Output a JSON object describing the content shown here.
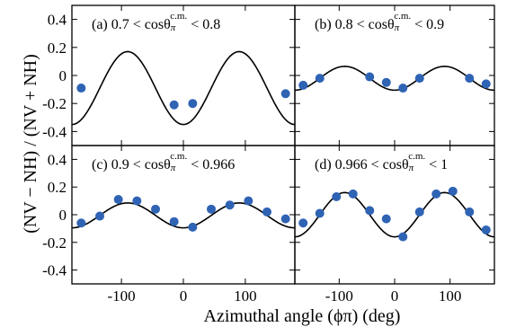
{
  "chart_data": [
    {
      "type": "scatter",
      "panel": "a",
      "label_prefix": "(a) 0.7 < cosθ",
      "label_sup": "c.m.",
      "label_suffix": " < 0.8",
      "xlim": [
        -180,
        180
      ],
      "ylim": [
        -0.5,
        0.5
      ],
      "points": {
        "x": [
          -165,
          -15,
          15,
          165
        ],
        "y": [
          -0.09,
          -0.21,
          -0.2,
          -0.13
        ]
      },
      "fit": {
        "A": -0.09,
        "B": -0.26
      },
      "yticks": [
        "0.4",
        "0.2",
        "0",
        "-0.2",
        "-0.4"
      ],
      "xticks": []
    },
    {
      "type": "scatter",
      "panel": "b",
      "label_prefix": "(b) 0.8 < cosθ",
      "label_sup": "c.m.",
      "label_suffix": " < 0.9",
      "xlim": [
        -180,
        180
      ],
      "ylim": [
        -0.5,
        0.5
      ],
      "points": {
        "x": [
          -165,
          -135,
          -45,
          -15,
          15,
          45,
          135,
          165
        ],
        "y": [
          -0.07,
          -0.02,
          -0.01,
          -0.05,
          -0.09,
          -0.02,
          -0.02,
          -0.06
        ]
      },
      "fit": {
        "A": -0.02,
        "B": -0.085
      },
      "yticks": [],
      "xticks": []
    },
    {
      "type": "scatter",
      "panel": "c",
      "label_prefix": "(c) 0.9 < cosθ",
      "label_sup": "c.m.",
      "label_suffix": " < 0.966",
      "xlim": [
        -180,
        180
      ],
      "ylim": [
        -0.5,
        0.5
      ],
      "points": {
        "x": [
          -165,
          -135,
          -105,
          -75,
          -45,
          -15,
          15,
          45,
          75,
          105,
          135,
          165
        ],
        "y": [
          -0.06,
          -0.01,
          0.11,
          0.1,
          0.04,
          -0.05,
          -0.09,
          0.04,
          0.07,
          0.1,
          0.02,
          -0.03
        ]
      },
      "fit": {
        "A": -0.005,
        "B": -0.09
      },
      "yticks": [
        "0.4",
        "0.2",
        "0",
        "-0.2",
        "-0.4"
      ],
      "xticks": [
        "-100",
        "0",
        "100"
      ]
    },
    {
      "type": "scatter",
      "panel": "d",
      "label_prefix": "(d) 0.966 < cosθ",
      "label_sup": "c.m.",
      "label_suffix": " < 1",
      "xlim": [
        -180,
        180
      ],
      "ylim": [
        -0.5,
        0.5
      ],
      "points": {
        "x": [
          -165,
          -135,
          -105,
          -75,
          -45,
          -15,
          15,
          45,
          75,
          105,
          135,
          165
        ],
        "y": [
          -0.06,
          0.01,
          0.13,
          0.15,
          0.03,
          -0.03,
          -0.16,
          0.02,
          0.15,
          0.17,
          0.02,
          -0.11
        ]
      },
      "fit": {
        "A": 0.0,
        "B": -0.16
      },
      "yticks": [],
      "xticks": [
        "-100",
        "0",
        "100"
      ]
    }
  ],
  "axes": {
    "xlabel": "Azimuthal angle (ϕπ)  (deg)",
    "ylabel": "(NV − NH) / (NV + NH)"
  }
}
